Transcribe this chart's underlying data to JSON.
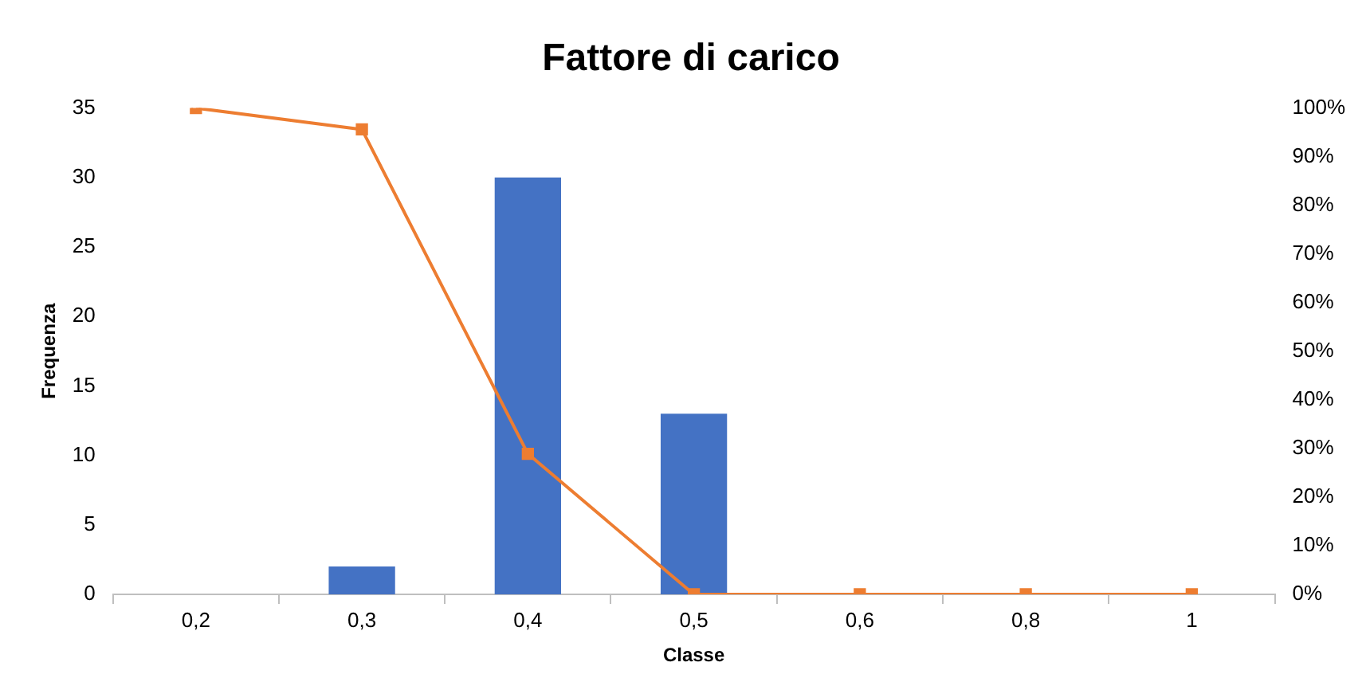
{
  "chart_data": {
    "type": "bar",
    "title": "Fattore di carico",
    "xlabel": "Classe",
    "ylabel": "Frequenza",
    "categories": [
      "0,2",
      "0,3",
      "0,4",
      "0,5",
      "0,6",
      "0,8",
      "1"
    ],
    "series": [
      {
        "color": "#4472c4",
        "values": [
          0,
          2,
          30,
          13,
          null,
          null,
          null
        ]
      },
      {
        "type": "line",
        "axis": "y2",
        "color": "#ed7d31",
        "values": [
          100,
          95.6,
          28.9,
          0,
          0,
          0,
          0
        ]
      }
    ],
    "ylim": [
      0,
      35
    ],
    "yticks": [
      0,
      5,
      10,
      15,
      20,
      25,
      30,
      35
    ],
    "y2lim": [
      0,
      100
    ],
    "y2ticks": [
      {
        "value": 0,
        "label": "0%"
      },
      {
        "value": 10,
        "label": "10%"
      },
      {
        "value": 20,
        "label": "20%"
      },
      {
        "value": 30,
        "label": "30%"
      },
      {
        "value": 40,
        "label": "40%"
      },
      {
        "value": 50,
        "label": "50%"
      },
      {
        "value": 60,
        "label": "60%"
      },
      {
        "value": 70,
        "label": "70%"
      },
      {
        "value": 80,
        "label": "80%"
      },
      {
        "value": 90,
        "label": "90%"
      },
      {
        "value": 100,
        "label": "100%"
      }
    ],
    "marker": "square",
    "grid": false,
    "legend": false
  }
}
